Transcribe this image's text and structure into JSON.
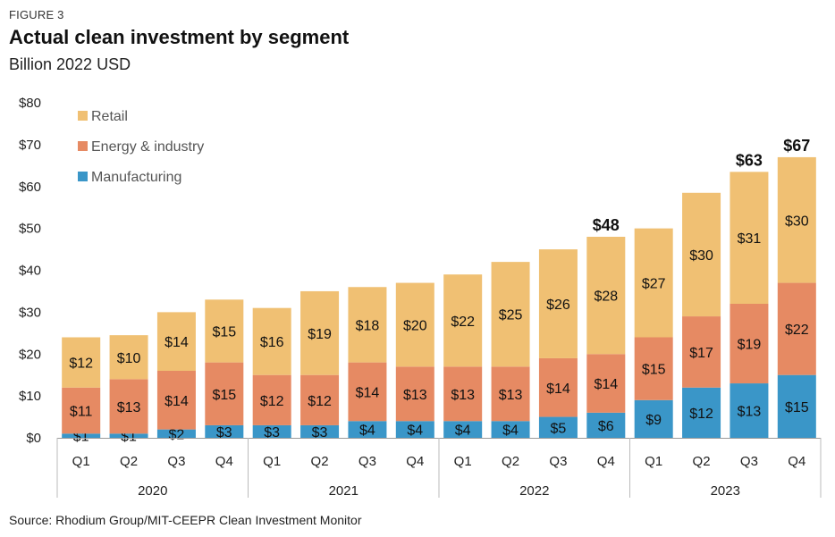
{
  "header": {
    "figure_label": "FIGURE 3",
    "title": "Actual clean investment by segment",
    "subtitle": "Billion 2022 USD"
  },
  "source": "Source: Rhodium Group/MIT-CEEPR Clean Investment Monitor",
  "chart_data": {
    "type": "bar",
    "stacked": true,
    "title": "Actual clean investment by segment",
    "ylabel": "Billion 2022 USD",
    "ylim": [
      0,
      80
    ],
    "y_ticks": [
      0,
      10,
      20,
      30,
      40,
      50,
      60,
      70,
      80
    ],
    "y_tick_labels": [
      "$0",
      "$10",
      "$20",
      "$30",
      "$40",
      "$50",
      "$60",
      "$70",
      "$80"
    ],
    "grid": false,
    "legend_position": "top-left",
    "categories": [
      "Q1",
      "Q2",
      "Q3",
      "Q4",
      "Q1",
      "Q2",
      "Q3",
      "Q4",
      "Q1",
      "Q2",
      "Q3",
      "Q4",
      "Q1",
      "Q2",
      "Q3",
      "Q4"
    ],
    "groups": [
      {
        "label": "2020",
        "start": 0,
        "count": 4
      },
      {
        "label": "2021",
        "start": 4,
        "count": 4
      },
      {
        "label": "2022",
        "start": 8,
        "count": 4
      },
      {
        "label": "2023",
        "start": 12,
        "count": 4
      }
    ],
    "series": [
      {
        "name": "Manufacturing",
        "color": "#3a96c8",
        "values": [
          1,
          1,
          2,
          3,
          3,
          3,
          4,
          4,
          4,
          4,
          5,
          6,
          9,
          12,
          13,
          15
        ],
        "labels": [
          "$1",
          "$1",
          "$2",
          "$3",
          "$3",
          "$3",
          "$4",
          "$4",
          "$4",
          "$4",
          "$5",
          "$6",
          "$9",
          "$12",
          "$13",
          "$15"
        ]
      },
      {
        "name": "Energy & industry",
        "color": "#e68a63",
        "values": [
          11,
          13,
          14,
          15,
          12,
          12,
          14,
          13,
          13,
          13,
          14,
          14,
          15,
          17,
          19,
          22
        ],
        "labels": [
          "$11",
          "$13",
          "$14",
          "$15",
          "$12",
          "$12",
          "$14",
          "$13",
          "$13",
          "$13",
          "$14",
          "$14",
          "$15",
          "$17",
          "$19",
          "$22"
        ]
      },
      {
        "name": "Retail",
        "color": "#f0c073",
        "values": [
          12,
          10,
          14,
          15,
          16,
          19,
          18,
          20,
          22,
          25,
          26,
          28,
          27,
          30,
          31,
          30
        ],
        "labels": [
          "$12",
          "$10",
          "$14",
          "$15",
          "$16",
          "$19",
          "$18",
          "$20",
          "$22",
          "$25",
          "$26",
          "$28",
          "$27",
          "$30",
          "$31",
          "$30"
        ]
      }
    ],
    "totals": [
      24,
      24.5,
      30,
      33,
      31,
      35,
      36,
      37,
      39,
      42,
      45,
      48,
      50,
      58.5,
      63.5,
      67
    ],
    "total_labels": [
      {
        "index": 11,
        "text": "$48"
      },
      {
        "index": 14,
        "text": "$63"
      },
      {
        "index": 15,
        "text": "$67"
      }
    ]
  }
}
